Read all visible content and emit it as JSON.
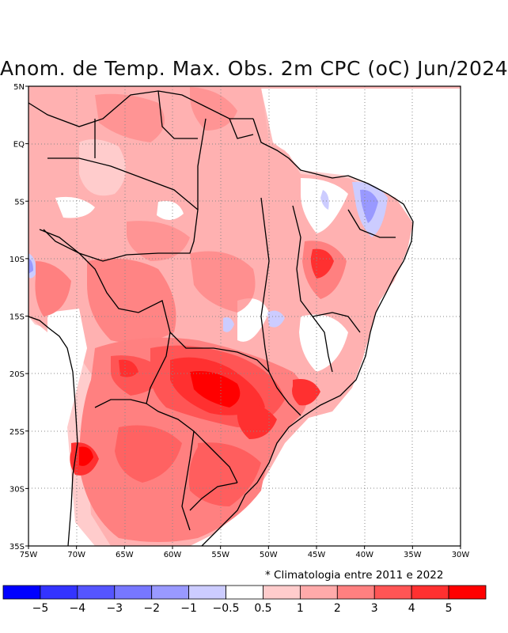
{
  "title": "Anom. de Temp. Max. Obs. 2m CPC (oC) Jun/2024",
  "footnote": "* Climatologia entre 2011 e 2022",
  "map": {
    "lon_range": [
      -75,
      -30
    ],
    "lat_range": [
      -35,
      5
    ],
    "x_ticks": [
      {
        "v": -75,
        "label": "75W"
      },
      {
        "v": -70,
        "label": "70W"
      },
      {
        "v": -65,
        "label": "65W"
      },
      {
        "v": -60,
        "label": "60W"
      },
      {
        "v": -55,
        "label": "55W"
      },
      {
        "v": -50,
        "label": "50W"
      },
      {
        "v": -45,
        "label": "45W"
      },
      {
        "v": -40,
        "label": "40W"
      },
      {
        "v": -35,
        "label": "35W"
      },
      {
        "v": -30,
        "label": "30W"
      }
    ],
    "y_ticks": [
      {
        "v": 5,
        "label": "5N"
      },
      {
        "v": 0,
        "label": "EQ"
      },
      {
        "v": -5,
        "label": "5S"
      },
      {
        "v": -10,
        "label": "10S"
      },
      {
        "v": -15,
        "label": "15S"
      },
      {
        "v": -20,
        "label": "20S"
      },
      {
        "v": -25,
        "label": "25S"
      },
      {
        "v": -30,
        "label": "30S"
      },
      {
        "v": -35,
        "label": "35S"
      }
    ],
    "grid": "dotted"
  },
  "colorbar": {
    "colors": [
      "#0000ff",
      "#3333ff",
      "#5555ff",
      "#7777ff",
      "#9999ff",
      "#ccccff",
      "#ffffff",
      "#ffcccc",
      "#ffaaaa",
      "#ff8080",
      "#ff5555",
      "#ff3030",
      "#ff0000"
    ],
    "labels": [
      "−5",
      "−4",
      "−3",
      "−2",
      "−1",
      "−0.5",
      "0.5",
      "1",
      "2",
      "3",
      "4",
      "5"
    ]
  }
}
